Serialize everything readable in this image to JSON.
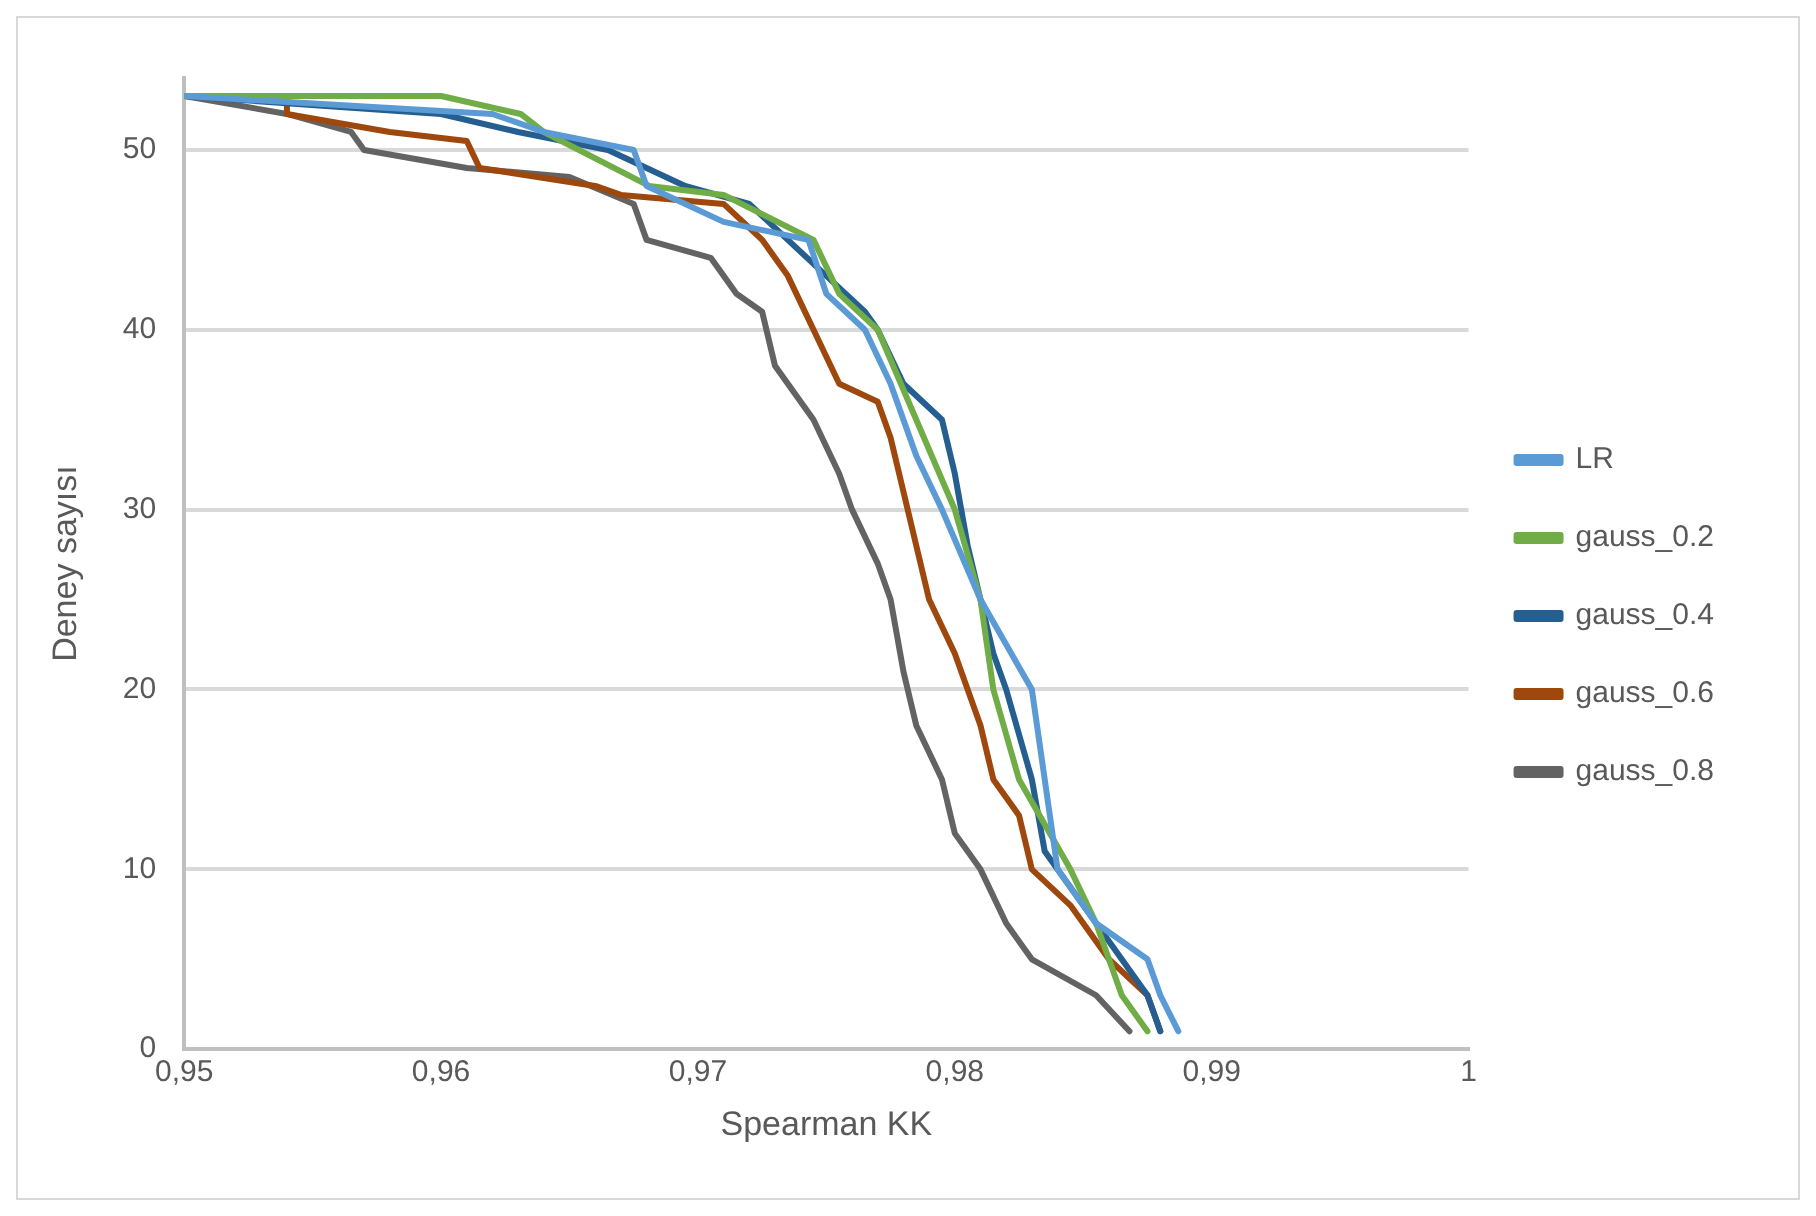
{
  "chart_data": {
    "type": "line",
    "xlabel": "Spearman KK",
    "ylabel": "Deney sayısı",
    "xlim": [
      0.95,
      1
    ],
    "xticks": [
      {
        "value": 0.95,
        "label": "0,95"
      },
      {
        "value": 0.96,
        "label": "0,96"
      },
      {
        "value": 0.97,
        "label": "0,97"
      },
      {
        "value": 0.98,
        "label": "0,98"
      },
      {
        "value": 0.99,
        "label": "0,99"
      },
      {
        "value": 1,
        "label": "1"
      }
    ],
    "ylim": [
      0,
      54
    ],
    "yticks": [
      0,
      10,
      20,
      30,
      40,
      50
    ],
    "grid": "y",
    "legend": "right",
    "marker": "none",
    "line_style": "solid",
    "series": [
      {
        "name": "LR",
        "color": "#5b9bd5",
        "x": [
          0.95,
          0.962,
          0.964,
          0.9675,
          0.968,
          0.971,
          0.9743,
          0.975,
          0.9765,
          0.9775,
          0.9785,
          0.9795,
          0.981,
          0.983,
          0.9835,
          0.984,
          0.9855,
          0.9875,
          0.988,
          0.9887
        ],
        "values": [
          53,
          52,
          51,
          50,
          48,
          46,
          45,
          42,
          40,
          37,
          33,
          30,
          25,
          20,
          15,
          10,
          7,
          5,
          3,
          1
        ]
      },
      {
        "name": "gauss_0.2",
        "color": "#70ad47",
        "x": [
          0.95,
          0.96,
          0.9631,
          0.964,
          0.9681,
          0.971,
          0.9745,
          0.9755,
          0.977,
          0.9785,
          0.98,
          0.981,
          0.9815,
          0.9825,
          0.9845,
          0.9855,
          0.9865,
          0.9875
        ],
        "values": [
          53,
          53,
          52,
          51,
          48,
          47.5,
          45,
          42,
          40,
          35,
          30,
          25,
          20,
          15,
          10,
          7,
          3,
          1
        ]
      },
      {
        "name": "gauss_0.4",
        "color": "#255e91",
        "x": [
          0.95,
          0.96,
          0.963,
          0.9665,
          0.9695,
          0.972,
          0.9735,
          0.975,
          0.9765,
          0.977,
          0.978,
          0.9795,
          0.98,
          0.9805,
          0.981,
          0.9815,
          0.982,
          0.983,
          0.9835,
          0.985,
          0.9865,
          0.9875,
          0.988
        ],
        "values": [
          53,
          52,
          51,
          50,
          48,
          47,
          45,
          43,
          41,
          40,
          37,
          35,
          32,
          28,
          25,
          22,
          20,
          15,
          11,
          8,
          5,
          3,
          1
        ]
      },
      {
        "name": "gauss_0.6",
        "color": "#9e480e",
        "x": [
          0.954,
          0.954,
          0.958,
          0.961,
          0.9615,
          0.966,
          0.967,
          0.971,
          0.9725,
          0.9735,
          0.9745,
          0.9755,
          0.977,
          0.9775,
          0.978,
          0.9785,
          0.979,
          0.98,
          0.981,
          0.9815,
          0.9825,
          0.983,
          0.9845,
          0.986,
          0.9875,
          0.988
        ],
        "values": [
          53,
          52,
          51,
          50.5,
          49,
          48,
          47.5,
          47,
          45,
          43,
          40,
          37,
          36,
          34,
          31,
          28,
          25,
          22,
          18,
          15,
          13,
          10,
          8,
          5,
          3,
          1
        ]
      },
      {
        "name": "gauss_0.8",
        "color": "#636363",
        "x": [
          0.95,
          0.954,
          0.9565,
          0.957,
          0.961,
          0.965,
          0.9675,
          0.968,
          0.9705,
          0.9715,
          0.9725,
          0.973,
          0.9745,
          0.9755,
          0.976,
          0.977,
          0.9775,
          0.978,
          0.9785,
          0.9795,
          0.98,
          0.981,
          0.982,
          0.983,
          0.9855,
          0.9868
        ],
        "values": [
          53,
          52,
          51,
          50,
          49,
          48.5,
          47,
          45,
          44,
          42,
          41,
          38,
          35,
          32,
          30,
          27,
          25,
          21,
          18,
          15,
          12,
          10,
          7,
          5,
          3,
          1
        ]
      }
    ]
  }
}
